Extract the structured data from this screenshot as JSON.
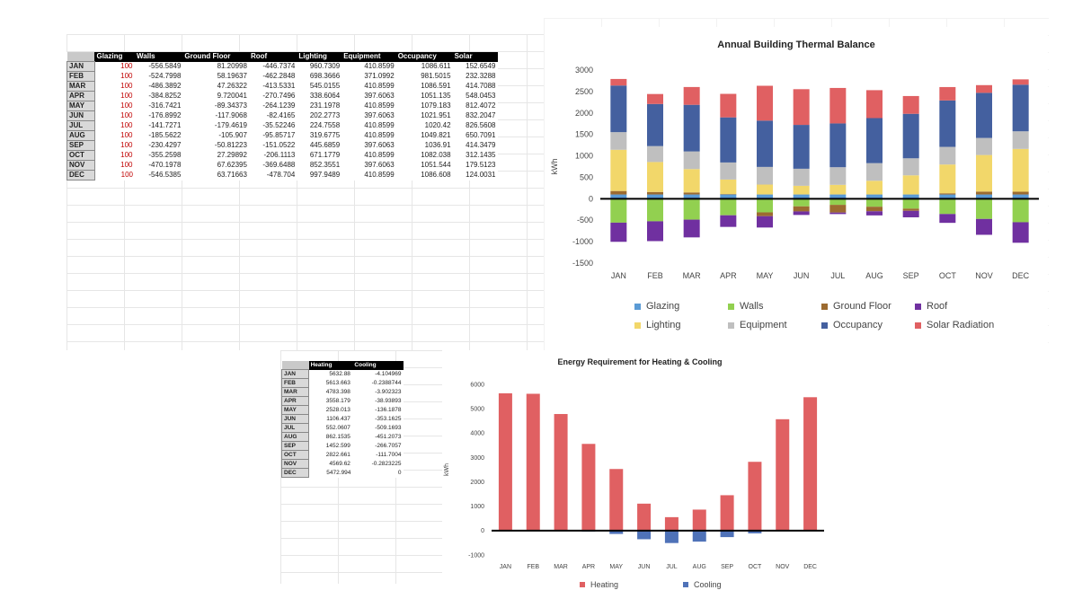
{
  "table1": {
    "headers": [
      "",
      "Glazing",
      "Walls",
      "Ground Floor",
      "Roof",
      "Lighting",
      "Equipment",
      "Occupancy",
      "Solar"
    ],
    "rows": [
      [
        "JAN",
        "100",
        "-556.5849",
        "81.20998",
        "-446.7374",
        "960.7309",
        "410.8599",
        "1086.611",
        "152.6549"
      ],
      [
        "FEB",
        "100",
        "-524.7998",
        "58.19637",
        "-462.2848",
        "698.3666",
        "371.0992",
        "981.5015",
        "232.3288"
      ],
      [
        "MAR",
        "100",
        "-486.3892",
        "47.26322",
        "-413.5331",
        "545.0155",
        "410.8599",
        "1086.591",
        "414.7088"
      ],
      [
        "APR",
        "100",
        "-384.8252",
        "9.720041",
        "-270.7496",
        "338.6064",
        "397.6063",
        "1051.135",
        "548.0453"
      ],
      [
        "MAY",
        "100",
        "-316.7421",
        "-89.34373",
        "-264.1239",
        "231.1978",
        "410.8599",
        "1079.183",
        "812.4072"
      ],
      [
        "JUN",
        "100",
        "-176.8992",
        "-117.9068",
        "-82.4165",
        "202.2773",
        "397.6063",
        "1021.951",
        "832.2047"
      ],
      [
        "JUL",
        "100",
        "-141.7271",
        "-179.4619",
        "-35.52246",
        "224.7558",
        "410.8599",
        "1020.42",
        "826.5608"
      ],
      [
        "AUG",
        "100",
        "-185.5622",
        "-105.907",
        "-95.85717",
        "319.6775",
        "410.8599",
        "1049.821",
        "650.7091"
      ],
      [
        "SEP",
        "100",
        "-230.4297",
        "-50.81223",
        "-151.0522",
        "445.6859",
        "397.6063",
        "1036.91",
        "414.3479"
      ],
      [
        "OCT",
        "100",
        "-355.2598",
        "27.29892",
        "-206.1113",
        "671.1779",
        "410.8599",
        "1082.038",
        "312.1435"
      ],
      [
        "NOV",
        "100",
        "-470.1978",
        "67.62395",
        "-369.6488",
        "852.3551",
        "397.6063",
        "1051.544",
        "179.5123"
      ],
      [
        "DEC",
        "100",
        "-546.5385",
        "63.71663",
        "-478.704",
        "997.9489",
        "410.8599",
        "1086.608",
        "124.0031"
      ]
    ]
  },
  "table2": {
    "headers": [
      "",
      "Heating",
      "Cooling"
    ],
    "rows": [
      [
        "JAN",
        "5632.88",
        "-4.104969"
      ],
      [
        "FEB",
        "5613.663",
        "-0.2388744"
      ],
      [
        "MAR",
        "4783.398",
        "-3.902323"
      ],
      [
        "APR",
        "3558.179",
        "-38.93893"
      ],
      [
        "MAY",
        "2528.013",
        "-136.1878"
      ],
      [
        "JUN",
        "1106.437",
        "-353.1625"
      ],
      [
        "JUL",
        "552.0607",
        "-509.1693"
      ],
      [
        "AUG",
        "862.1535",
        "-451.2073"
      ],
      [
        "SEP",
        "1452.599",
        "-266.7057"
      ],
      [
        "OCT",
        "2822.661",
        "-111.7004"
      ],
      [
        "NOV",
        "4569.62",
        "-0.2823225"
      ],
      [
        "DEC",
        "5472.994",
        "0"
      ]
    ]
  },
  "chart_data": [
    {
      "type": "bar",
      "stacked": true,
      "title": "Annual Building Thermal Balance",
      "ylabel": "kWh",
      "xlabel": "",
      "ylim": [
        -1500,
        3000
      ],
      "yticks": [
        "3000",
        "2500",
        "2000",
        "1500",
        "1000",
        "500",
        "0",
        "-500",
        "-1000",
        "-1500"
      ],
      "categories": [
        "JAN",
        "FEB",
        "MAR",
        "APR",
        "MAY",
        "JUN",
        "JUL",
        "AUG",
        "SEP",
        "OCT",
        "NOV",
        "DEC"
      ],
      "legend_position": "bottom",
      "series": [
        {
          "name": "Glazing",
          "color": "#5b9bd5",
          "values": [
            100,
            100,
            100,
            100,
            100,
            100,
            100,
            100,
            100,
            100,
            100,
            100
          ]
        },
        {
          "name": "Walls",
          "color": "#92d050",
          "values": [
            -556.6,
            -524.8,
            -486.4,
            -384.8,
            -316.7,
            -176.9,
            -141.7,
            -185.6,
            -230.4,
            -355.3,
            -470.2,
            -546.5
          ]
        },
        {
          "name": "Ground Floor",
          "color": "#9c6b30",
          "values": [
            81.2,
            58.2,
            47.3,
            9.7,
            -89.3,
            -117.9,
            -179.5,
            -105.9,
            -50.8,
            27.3,
            67.6,
            63.7
          ]
        },
        {
          "name": "Roof",
          "color": "#7030a0",
          "values": [
            -446.7,
            -462.3,
            -413.5,
            -270.7,
            -264.1,
            -82.4,
            -35.5,
            -95.9,
            -151.1,
            -206.1,
            -369.6,
            -478.7
          ]
        },
        {
          "name": "Lighting",
          "color": "#f2d76a",
          "values": [
            960.7,
            698.4,
            545.0,
            338.6,
            231.2,
            202.3,
            224.8,
            319.7,
            445.7,
            671.2,
            852.4,
            997.9
          ]
        },
        {
          "name": "Equipment",
          "color": "#bfbfbf",
          "values": [
            410.9,
            371.1,
            410.9,
            397.6,
            410.9,
            397.6,
            410.9,
            410.9,
            397.6,
            410.9,
            397.6,
            410.9
          ]
        },
        {
          "name": "Occupancy",
          "color": "#44609f",
          "values": [
            1086.6,
            981.5,
            1086.6,
            1051.1,
            1079.2,
            1022.0,
            1020.4,
            1049.8,
            1036.9,
            1082.0,
            1051.5,
            1086.6
          ]
        },
        {
          "name": "Solar Radiation",
          "color": "#e06062",
          "values": [
            152.7,
            232.3,
            414.7,
            548.0,
            812.4,
            832.2,
            826.6,
            650.7,
            414.3,
            312.1,
            179.5,
            124.0
          ]
        }
      ]
    },
    {
      "type": "bar",
      "stacked": true,
      "title": "Energy Requirement for Heating & Cooling",
      "ylabel": "kWh",
      "xlabel": "",
      "ylim": [
        -1000,
        6000
      ],
      "yticks": [
        "6000",
        "5000",
        "4000",
        "3000",
        "2000",
        "1000",
        "0",
        "-1000"
      ],
      "categories": [
        "JAN",
        "FEB",
        "MAR",
        "APR",
        "MAY",
        "JUN",
        "JUL",
        "AUG",
        "SEP",
        "OCT",
        "NOV",
        "DEC"
      ],
      "legend_position": "bottom",
      "series": [
        {
          "name": "Heating",
          "color": "#e06062",
          "values": [
            5632.9,
            5613.7,
            4783.4,
            3558.2,
            2528.0,
            1106.4,
            552.1,
            862.2,
            1452.6,
            2822.7,
            4569.6,
            5473.0
          ]
        },
        {
          "name": "Cooling",
          "color": "#4f72b8",
          "values": [
            -4.1,
            -0.2,
            -3.9,
            -38.9,
            -136.2,
            -353.2,
            -509.2,
            -451.2,
            -266.7,
            -111.7,
            -0.3,
            0
          ]
        }
      ]
    }
  ]
}
